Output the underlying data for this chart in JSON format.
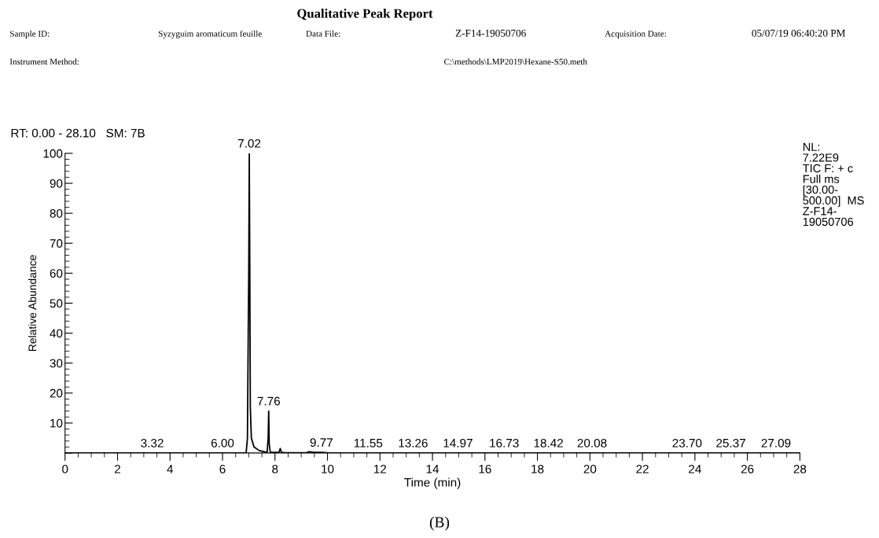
{
  "chart_data": {
    "type": "line",
    "title": "Qualitative Peak Report",
    "xlabel": "Time (min)",
    "ylabel": "Relative Abundance",
    "x": [
      0,
      3.32,
      6.0,
      6.9,
      6.95,
      6.98,
      7.0,
      7.02,
      7.04,
      7.06,
      7.1,
      7.2,
      7.4,
      7.6,
      7.7,
      7.74,
      7.76,
      7.78,
      7.82,
      8.0,
      8.15,
      8.2,
      8.25,
      8.4,
      9.2,
      9.3,
      9.5,
      9.77,
      10,
      11.55,
      13.26,
      14.97,
      16.73,
      18.42,
      20.08,
      22,
      23.7,
      25.37,
      27.09,
      28
    ],
    "series": [
      {
        "color": "#000000",
        "values": [
          0,
          0,
          0,
          0,
          5,
          40,
          60,
          100,
          60,
          15,
          5,
          2,
          0.8,
          0.4,
          0.3,
          5,
          14,
          3,
          0.3,
          0.2,
          0.2,
          1.5,
          0.2,
          0.1,
          0.1,
          0.4,
          0.2,
          0.2,
          0.1,
          0,
          0,
          0,
          0,
          0,
          0,
          0,
          0,
          0,
          0,
          0
        ]
      }
    ],
    "xlim": [
      0,
      28
    ],
    "xticks": [
      0,
      2,
      4,
      6,
      8,
      10,
      12,
      14,
      16,
      18,
      20,
      22,
      24,
      26,
      28
    ],
    "ylim": [
      0,
      100
    ],
    "yticks": [
      {
        "value": 0,
        "label": null
      },
      10,
      20,
      30,
      40,
      50,
      60,
      70,
      80,
      90,
      100
    ],
    "grid": false,
    "marker": "none",
    "line_style": "solid",
    "legend": false,
    "annotations": [
      "Sample ID:",
      "Syzyguim aromaticum feuille",
      "Data File:",
      "Z-F14-19050706",
      "Acquisition Date:",
      "05/07/19 06:40:20 PM",
      "Instrument Method:",
      "C:\\methods\\LMP2019\\Hexane-S50.meth",
      "RT: 0.00 - 28.10   SM: 7B",
      "NL:\n7.22E9\nTIC F: + c\nFull ms\n[30.00-\n500.00]  MS\nZ-F14-\n19050706",
      "(B)",
      {
        "text": "7.02",
        "x": 7.02,
        "y": 100
      },
      {
        "text": "7.76",
        "x": 7.76,
        "y": 14
      },
      {
        "text": "3.32",
        "x": 3.32,
        "y": 0
      },
      {
        "text": "6.00",
        "x": 6.0,
        "y": 0
      },
      {
        "text": "9.77",
        "x": 9.77,
        "y": 0.2
      },
      {
        "text": "11.55",
        "x": 11.55,
        "y": 0
      },
      {
        "text": "13.26",
        "x": 13.26,
        "y": 0
      },
      {
        "text": "14.97",
        "x": 14.97,
        "y": 0
      },
      {
        "text": "16.73",
        "x": 16.73,
        "y": 0
      },
      {
        "text": "18.42",
        "x": 18.42,
        "y": 0
      },
      {
        "text": "20.08",
        "x": 20.08,
        "y": 0
      },
      {
        "text": "23.70",
        "x": 23.7,
        "y": 0
      },
      {
        "text": "25.37",
        "x": 25.37,
        "y": 0
      },
      {
        "text": "27.09",
        "x": 27.09,
        "y": 0
      }
    ]
  }
}
